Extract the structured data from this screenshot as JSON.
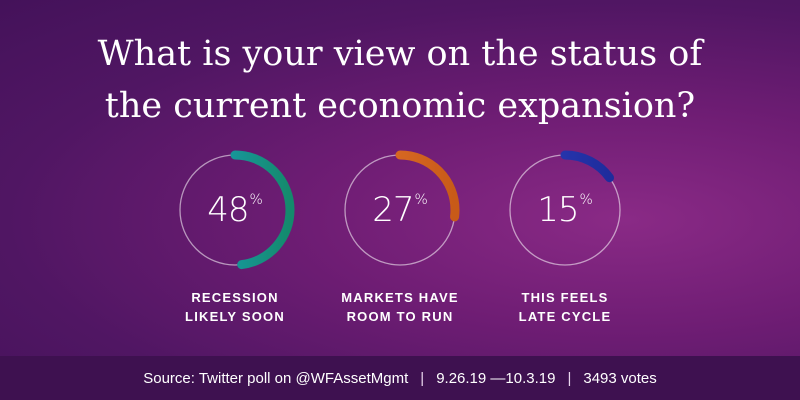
{
  "title_lines": [
    "What is your view on the status of",
    "the current economic expansion?"
  ],
  "chart_data": {
    "type": "pie",
    "categories": [
      "RECESSION LIKELY SOON",
      "MARKETS HAVE ROOM TO RUN",
      "THIS FEELS LATE CYCLE"
    ],
    "values": [
      48,
      27,
      15
    ],
    "unit": "%",
    "items": [
      {
        "value": 48,
        "value_text": "48",
        "unit": "%",
        "label_lines": [
          "RECESSION",
          "LIKELY SOON"
        ],
        "colors": [
          "#1aa0c0",
          "#148a6c"
        ]
      },
      {
        "value": 27,
        "value_text": "27",
        "unit": "%",
        "label_lines": [
          "MARKETS HAVE",
          "ROOM TO RUN"
        ],
        "colors": [
          "#e2732a",
          "#c85a18"
        ]
      },
      {
        "value": 15,
        "value_text": "15",
        "unit": "%",
        "label_lines": [
          "THIS FEELS",
          "LATE CYCLE"
        ],
        "colors": [
          "#2e3dbb",
          "#1c2a99"
        ]
      }
    ]
  },
  "footer": {
    "source": "Source: Twitter poll on @WFAssetMgmt",
    "separator": "|",
    "dates": "9.26.19 —10.3.19",
    "votes": "3493 votes"
  }
}
